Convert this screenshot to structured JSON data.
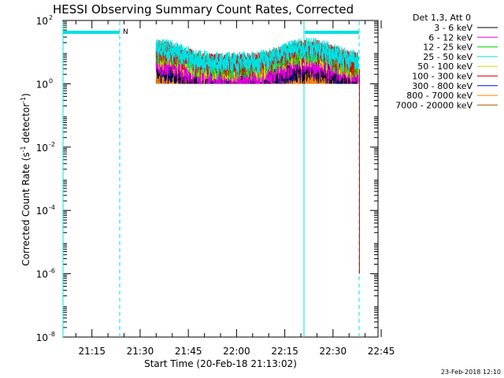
{
  "chart_data": {
    "type": "line",
    "title": "HESSI Observing Summary Count Rates, Corrected",
    "xlabel": "Start Time (20-Feb-18 21:13:02)",
    "ylabel_main": "Corrected Count Rate (s",
    "ylabel_sup1": "-1",
    "ylabel_mid": " detector",
    "ylabel_sup2": "-1",
    "ylabel_end": ")",
    "y_scale": "log",
    "ylim": [
      1e-08,
      100
    ],
    "xlim_minutes": [
      -9,
      89
    ],
    "x_ticks": [
      {
        "m": 0,
        "label": "21:15"
      },
      {
        "m": 15,
        "label": "21:30"
      },
      {
        "m": 30,
        "label": "21:45"
      },
      {
        "m": 45,
        "label": "22:00"
      },
      {
        "m": 60,
        "label": "22:15"
      },
      {
        "m": 75,
        "label": "22:30"
      },
      {
        "m": 90,
        "label": "22:45"
      }
    ],
    "y_ticks": [
      {
        "exp": "2",
        "v": 100
      },
      {
        "exp": "0",
        "v": 1
      },
      {
        "exp": "-2",
        "v": 0.01
      },
      {
        "exp": "-4",
        "v": 0.0001
      },
      {
        "exp": "-6",
        "v": 1e-06
      },
      {
        "exp": "-8",
        "v": 1e-08
      }
    ],
    "legend_title": "Det 1,3, Att 0",
    "legend_placement": "right, outside plot",
    "series": [
      {
        "name": "3 - 6 keV",
        "color": "#000000",
        "level": 3.5
      },
      {
        "name": "6 - 12 keV",
        "color": "#e000e0",
        "level": 5
      },
      {
        "name": "12 - 25 keV",
        "color": "#00d000",
        "level": 12
      },
      {
        "name": "25 - 50 keV",
        "color": "#00e0e0",
        "level": 16
      },
      {
        "name": "50 - 100 keV",
        "color": "#e0d000",
        "level": 10
      },
      {
        "name": "100 - 300 keV",
        "color": "#e00000",
        "level": 14
      },
      {
        "name": "300 - 800 keV",
        "color": "#0000ff",
        "level": 3.5
      },
      {
        "name": "800 - 7000 keV",
        "color": "#ff8000",
        "level": 1.5
      },
      {
        "name": "7000 - 20000 keV",
        "color": "#a06000",
        "level": 1.2
      }
    ],
    "annotations": {
      "night_label": "N",
      "timestamp": "23-Feb-2018 12:10"
    },
    "colors": {
      "saa_bar": "#00e0e0",
      "axes": "#000000"
    }
  }
}
